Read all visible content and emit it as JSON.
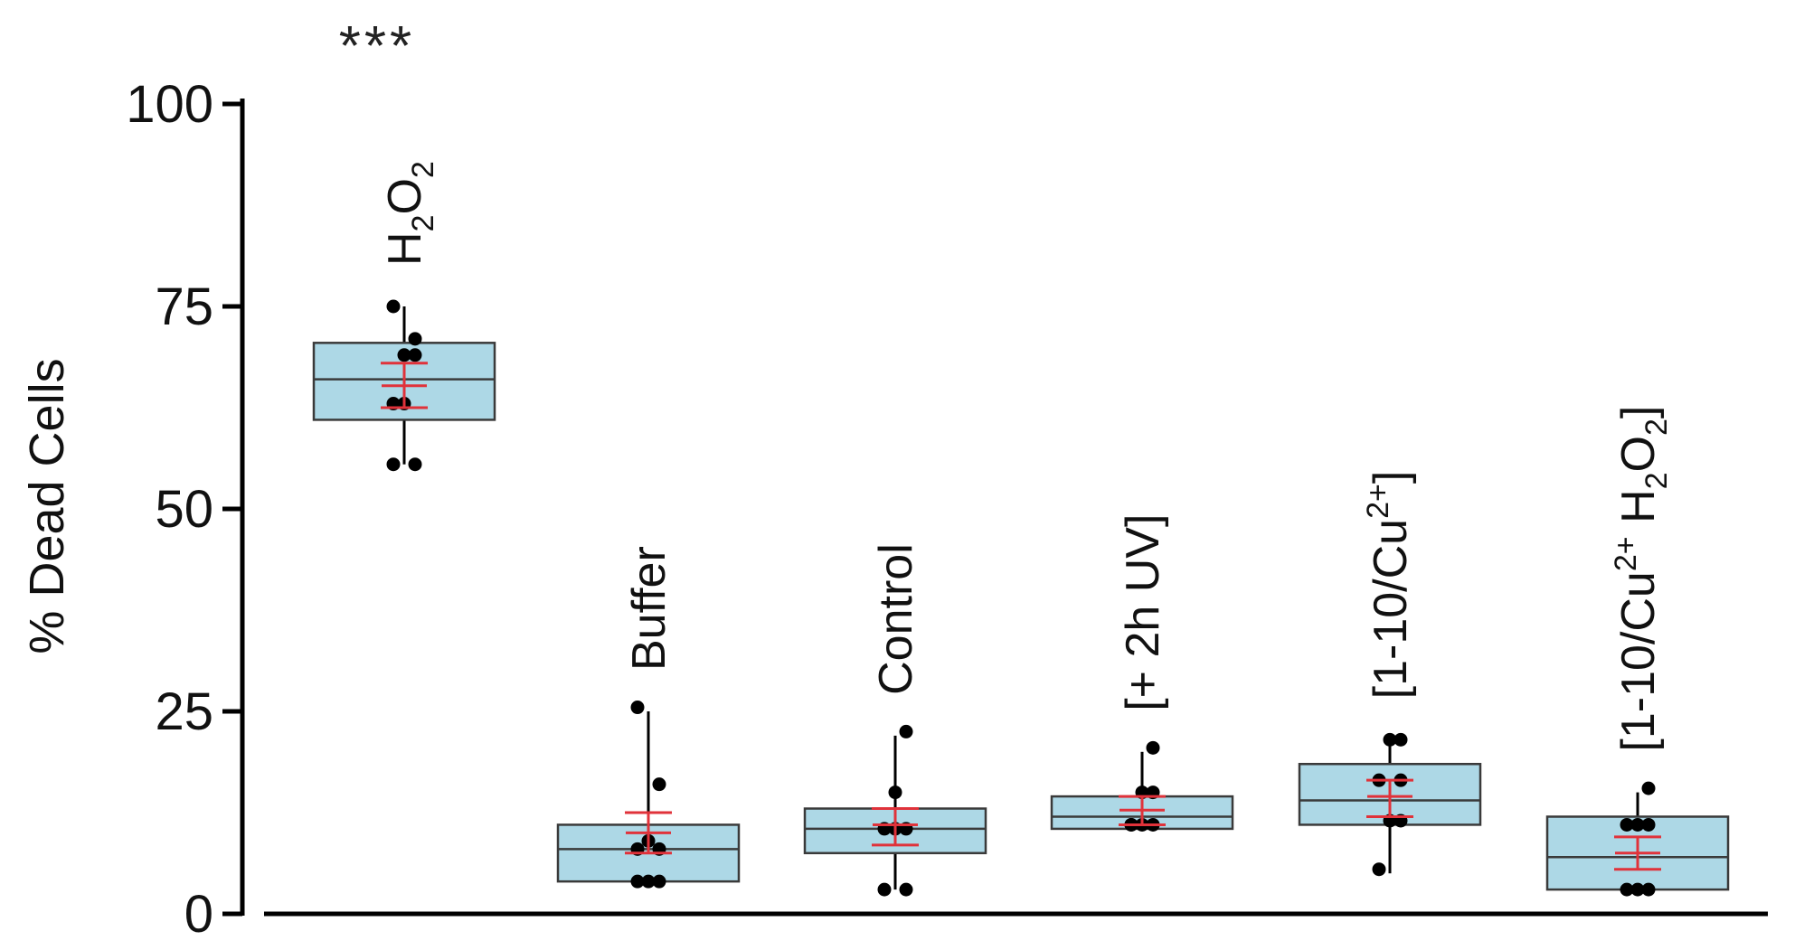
{
  "chart_data": {
    "type": "box",
    "ylabel": "% Dead Cells",
    "ylim": [
      0,
      100
    ],
    "yticks": [
      0,
      25,
      50,
      75,
      100
    ],
    "grid": false,
    "box_color": "#add8e6",
    "mean_error_color": "#e0323a",
    "categories": [
      {
        "label": [
          "H",
          {
            "sub": "2"
          },
          "O",
          {
            "sub": "2"
          }
        ],
        "significance": "***",
        "whisker_low": 55.5,
        "q1": 61,
        "median": 66,
        "q3": 70.5,
        "whisker_high": 75,
        "mean": 65.2,
        "error_low": 62.5,
        "error_high": 68,
        "points": [
          55.5,
          55.5,
          63,
          63,
          69,
          69,
          71,
          75
        ]
      },
      {
        "label": [
          "Buffer"
        ],
        "significance": "",
        "whisker_low": 4,
        "q1": 4,
        "median": 8,
        "q3": 11,
        "whisker_high": 25,
        "mean": 10,
        "error_low": 7.5,
        "error_high": 12.5,
        "points": [
          4,
          4,
          4,
          8,
          8,
          9,
          16,
          25.5
        ]
      },
      {
        "label": [
          "Control"
        ],
        "significance": "",
        "whisker_low": 3,
        "q1": 7.5,
        "median": 10.5,
        "q3": 13,
        "whisker_high": 22,
        "mean": 11,
        "error_low": 8.5,
        "error_high": 13,
        "points": [
          3,
          3,
          10.5,
          10.5,
          10.5,
          15,
          22.5
        ]
      },
      {
        "label": [
          "[+ 2h UV]"
        ],
        "significance": "",
        "whisker_low": 10.5,
        "q1": 10.5,
        "median": 12,
        "q3": 14.5,
        "whisker_high": 20,
        "mean": 12.8,
        "error_low": 11,
        "error_high": 14.5,
        "points": [
          11,
          11,
          11,
          11,
          15,
          15,
          20.5
        ]
      },
      {
        "label": [
          "[1-10/Cu",
          {
            "sup": "2+"
          },
          "]"
        ],
        "significance": "",
        "whisker_low": 5,
        "q1": 11,
        "median": 14,
        "q3": 18.5,
        "whisker_high": 21.5,
        "mean": 14.5,
        "error_low": 12,
        "error_high": 16.5,
        "points": [
          5.5,
          11.5,
          11.5,
          16.5,
          16.5,
          21.5,
          21.5
        ]
      },
      {
        "label": [
          "[1-10/Cu",
          {
            "sup": "2+"
          },
          " H",
          {
            "sub": "2"
          },
          "O",
          {
            "sub": "2"
          },
          "]"
        ],
        "significance": "",
        "whisker_low": 3,
        "q1": 3,
        "median": 7,
        "q3": 12,
        "whisker_high": 15,
        "mean": 7.5,
        "error_low": 5.5,
        "error_high": 9.5,
        "points": [
          3,
          3,
          3,
          11,
          11,
          11,
          15.5
        ]
      }
    ]
  }
}
